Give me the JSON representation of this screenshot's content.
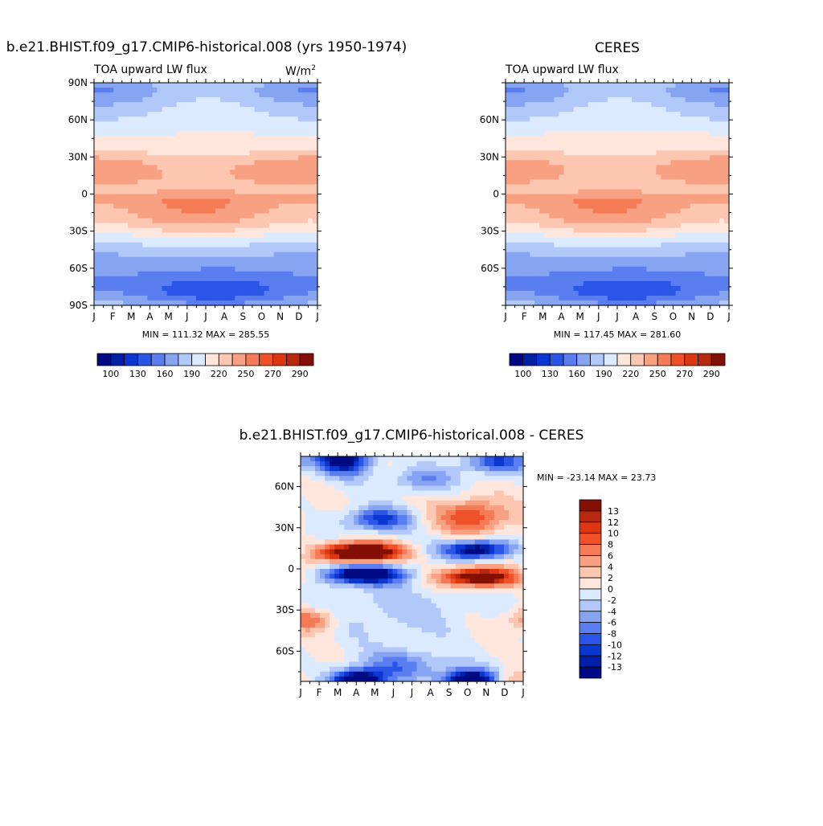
{
  "chart_data": [
    {
      "type": "heatmap",
      "id": "model",
      "title": "b.e21.BHIST.f09_g17.CMIP6-historical.008 (yrs 1950-1974)",
      "left_label": "TOA upward LW flux",
      "units_base": "W/m",
      "units_exp": "2",
      "stats": "MIN = 111.32 MAX = 285.55",
      "min": 111.32,
      "max": 285.55,
      "x_ticks": [
        "J",
        "F",
        "M",
        "A",
        "M",
        "J",
        "J",
        "A",
        "S",
        "O",
        "N",
        "D",
        "J"
      ],
      "y_ticks": [
        "90N",
        "60N",
        "30N",
        "0",
        "30S",
        "60S",
        "90S"
      ],
      "y_tick_lat": [
        90,
        60,
        30,
        0,
        -30,
        -60,
        -90
      ],
      "ylim": [
        -90,
        90
      ],
      "colorbar_labels": [
        "100",
        "130",
        "160",
        "190",
        "220",
        "250",
        "270",
        "290"
      ],
      "levels": [
        100,
        115,
        130,
        145,
        160,
        175,
        190,
        205,
        220,
        235,
        250,
        260,
        270,
        280,
        290
      ]
    },
    {
      "type": "heatmap",
      "id": "obs",
      "title": "CERES",
      "left_label": "TOA upward LW flux",
      "stats": "MIN = 117.45 MAX = 281.60",
      "min": 117.45,
      "max": 281.6,
      "x_ticks": [
        "J",
        "F",
        "M",
        "A",
        "M",
        "J",
        "J",
        "A",
        "S",
        "O",
        "N",
        "D",
        "J"
      ],
      "y_ticks": [
        "60N",
        "30N",
        "0",
        "30S",
        "60S"
      ],
      "y_tick_lat": [
        60,
        30,
        0,
        -30,
        -60
      ],
      "ylim": [
        -90,
        90
      ],
      "colorbar_labels": [
        "100",
        "130",
        "160",
        "190",
        "220",
        "250",
        "270",
        "290"
      ],
      "levels": [
        100,
        115,
        130,
        145,
        160,
        175,
        190,
        205,
        220,
        235,
        250,
        260,
        270,
        280,
        290
      ]
    },
    {
      "type": "heatmap",
      "id": "diff",
      "title": "b.e21.BHIST.f09_g17.CMIP6-historical.008 - CERES",
      "stats": "MIN = -23.14 MAX =  23.73",
      "min": -23.14,
      "max": 23.73,
      "x_ticks": [
        "J",
        "F",
        "M",
        "A",
        "M",
        "J",
        "J",
        "A",
        "S",
        "O",
        "N",
        "D",
        "J"
      ],
      "y_ticks": [
        "60N",
        "30N",
        "0",
        "30S",
        "60S"
      ],
      "y_tick_lat": [
        60,
        30,
        0,
        -30,
        -60
      ],
      "ylim": [
        -82,
        82
      ],
      "colorbar_labels": [
        "13",
        "12",
        "10",
        "8",
        "6",
        "4",
        "2",
        "0",
        "-2",
        "-4",
        "-6",
        "-8",
        "-10",
        "-12",
        "-13"
      ],
      "levels": [
        -13,
        -12,
        -10,
        -8,
        -6,
        -4,
        -2,
        0,
        2,
        4,
        6,
        8,
        10,
        12,
        13
      ]
    }
  ],
  "colors": {
    "abs_palette": [
      "#000a82",
      "#0020a8",
      "#0a37d2",
      "#2a55e6",
      "#5a7ef0",
      "#86a4f2",
      "#b2c8f8",
      "#dceaff",
      "#ffe6dc",
      "#fcc6b0",
      "#f7a182",
      "#f47b56",
      "#ef5228",
      "#dc3710",
      "#b8280e",
      "#830f05"
    ],
    "diff_palette": [
      "#000a82",
      "#0020a8",
      "#0a37d2",
      "#2a55e6",
      "#5a7ef0",
      "#86a4f2",
      "#b2c8f8",
      "#dceaff",
      "#ffe6dc",
      "#fcc6b0",
      "#f7a182",
      "#f47b56",
      "#ef5228",
      "#dc3710",
      "#b8280e",
      "#830f05"
    ]
  }
}
